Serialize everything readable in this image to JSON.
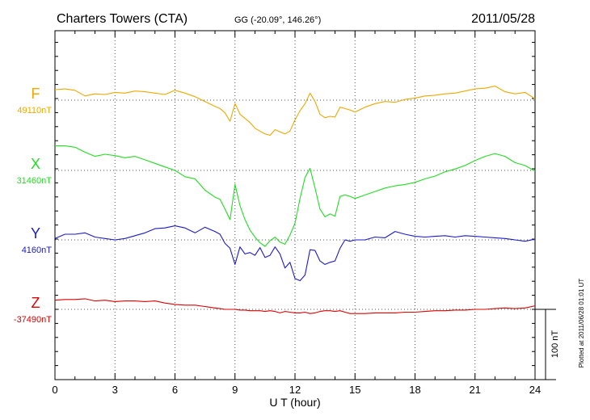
{
  "chart_data": {
    "type": "line",
    "title": "Charters Towers (CTA)",
    "subtitle": "GG (-20.09°, 146.26°)",
    "date": "2011/05/28",
    "xlabel": "U T (hour)",
    "xlim": [
      0,
      24
    ],
    "x_ticks": [
      0,
      3,
      6,
      9,
      12,
      15,
      18,
      21,
      24
    ],
    "grid": true,
    "scale_bar": {
      "label": "100 nT",
      "value": 100
    },
    "footnote": "Plotted at 2011/06/28 01:01 UT",
    "x": [
      0,
      0.5,
      1,
      1.5,
      2,
      2.5,
      3,
      3.5,
      4,
      4.5,
      5,
      5.5,
      6,
      6.5,
      7,
      7.5,
      8,
      8.25,
      8.5,
      8.75,
      9,
      9.25,
      9.5,
      9.75,
      10,
      10.25,
      10.5,
      10.75,
      11,
      11.25,
      11.5,
      11.75,
      12,
      12.25,
      12.5,
      12.75,
      13,
      13.25,
      13.5,
      13.75,
      14,
      14.25,
      14.5,
      14.75,
      15,
      15.5,
      16,
      16.5,
      17,
      17.5,
      18,
      18.5,
      19,
      19.5,
      20,
      20.5,
      21,
      21.5,
      22,
      22.5,
      23,
      23.5,
      24
    ],
    "series": [
      {
        "name": "F",
        "baseline_label": "49110nT",
        "color": "#f0a800",
        "baseline": 49110,
        "values": [
          49125,
          49126,
          49124,
          49116,
          49119,
          49118,
          49121,
          49120,
          49123,
          49122,
          49120,
          49118,
          49124,
          49120,
          49115,
          49108,
          49101,
          49098,
          49092,
          49080,
          49105,
          49090,
          49084,
          49078,
          49070,
          49066,
          49062,
          49060,
          49068,
          49065,
          49062,
          49066,
          49082,
          49095,
          49105,
          49120,
          49108,
          49090,
          49085,
          49087,
          49086,
          49100,
          49098,
          49096,
          49093,
          49100,
          49105,
          49108,
          49107,
          49111,
          49113,
          49116,
          49117,
          49119,
          49120,
          49123,
          49126,
          49127,
          49130,
          49122,
          49119,
          49121,
          49112
        ]
      },
      {
        "name": "X",
        "baseline_label": "31460nT",
        "color": "#22dd22",
        "baseline": 31460,
        "values": [
          31495,
          31495,
          31493,
          31486,
          31480,
          31483,
          31481,
          31478,
          31480,
          31475,
          31470,
          31465,
          31460,
          31451,
          31448,
          31432,
          31422,
          31419,
          31405,
          31390,
          31440,
          31410,
          31390,
          31375,
          31365,
          31357,
          31352,
          31360,
          31365,
          31358,
          31355,
          31368,
          31385,
          31420,
          31450,
          31463,
          31435,
          31405,
          31394,
          31398,
          31395,
          31423,
          31425,
          31423,
          31420,
          31425,
          31430,
          31435,
          31438,
          31440,
          31443,
          31448,
          31452,
          31458,
          31462,
          31467,
          31474,
          31480,
          31484,
          31480,
          31471,
          31467,
          31459
        ]
      },
      {
        "name": "Y",
        "baseline_label": "4160nT",
        "color": "#1a1acc",
        "baseline": 4160,
        "values": [
          4162,
          4168,
          4168,
          4170,
          4164,
          4162,
          4160,
          4162,
          4166,
          4170,
          4176,
          4177,
          4180,
          4177,
          4170,
          4178,
          4172,
          4168,
          4155,
          4148,
          4125,
          4150,
          4140,
          4142,
          4138,
          4149,
          4135,
          4138,
          4150,
          4140,
          4120,
          4128,
          4105,
          4102,
          4110,
          4146,
          4145,
          4130,
          4125,
          4128,
          4130,
          4148,
          4160,
          4158,
          4160,
          4160,
          4164,
          4163,
          4172,
          4168,
          4165,
          4164,
          4165,
          4166,
          4164,
          4166,
          4165,
          4164,
          4163,
          4162,
          4160,
          4158,
          4161
        ]
      },
      {
        "name": "Z",
        "baseline_label": "-37490nT",
        "color": "#dd0000",
        "baseline": -37490,
        "values": [
          -37477,
          -37476,
          -37476,
          -37475,
          -37478,
          -37477,
          -37479,
          -37478,
          -37478,
          -37479,
          -37478,
          -37481,
          -37483,
          -37484,
          -37484,
          -37486,
          -37488,
          -37489,
          -37490,
          -37490,
          -37490,
          -37491,
          -37491,
          -37492,
          -37492,
          -37492,
          -37493,
          -37492,
          -37493,
          -37495,
          -37493,
          -37494,
          -37495,
          -37495,
          -37494,
          -37496,
          -37495,
          -37493,
          -37492,
          -37492,
          -37493,
          -37492,
          -37494,
          -37496,
          -37496,
          -37496,
          -37495,
          -37495,
          -37495,
          -37494,
          -37494,
          -37493,
          -37492,
          -37492,
          -37491,
          -37491,
          -37490,
          -37490,
          -37489,
          -37488,
          -37489,
          -37488,
          -37485
        ]
      }
    ]
  }
}
